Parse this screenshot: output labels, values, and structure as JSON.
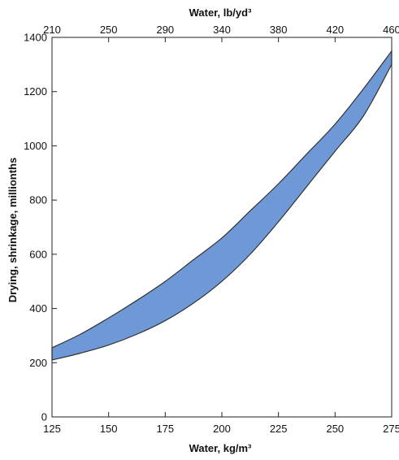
{
  "chart_data": {
    "type": "area",
    "title": "",
    "xlabel": "Water, kg/m³",
    "x2label": "Water, lb/yd³",
    "ylabel": "Drying, shrinkage, millionths",
    "xlim": [
      125,
      275
    ],
    "ylim": [
      0,
      1400
    ],
    "x_ticks": [
      "125",
      "150",
      "175",
      "200",
      "225",
      "250",
      "275"
    ],
    "x2_ticks": [
      "210",
      "250",
      "290",
      "340",
      "380",
      "420",
      "460"
    ],
    "y_ticks": [
      "0",
      "200",
      "400",
      "600",
      "800",
      "1000",
      "1200",
      "1400"
    ],
    "grid": false,
    "series": [
      {
        "x": [
          125,
          137.5,
          150,
          162.5,
          175,
          187.5,
          200,
          212.5,
          225,
          237.5,
          250,
          262.5,
          275
        ],
        "upper": [
          255,
          305,
          365,
          430,
          500,
          580,
          660,
          760,
          860,
          970,
          1080,
          1210,
          1350
        ],
        "lower": [
          210,
          235,
          265,
          305,
          355,
          420,
          500,
          600,
          720,
          850,
          980,
          1110,
          1300
        ]
      }
    ],
    "fill_color": "#6f98d6",
    "edge_color": "#333333"
  }
}
